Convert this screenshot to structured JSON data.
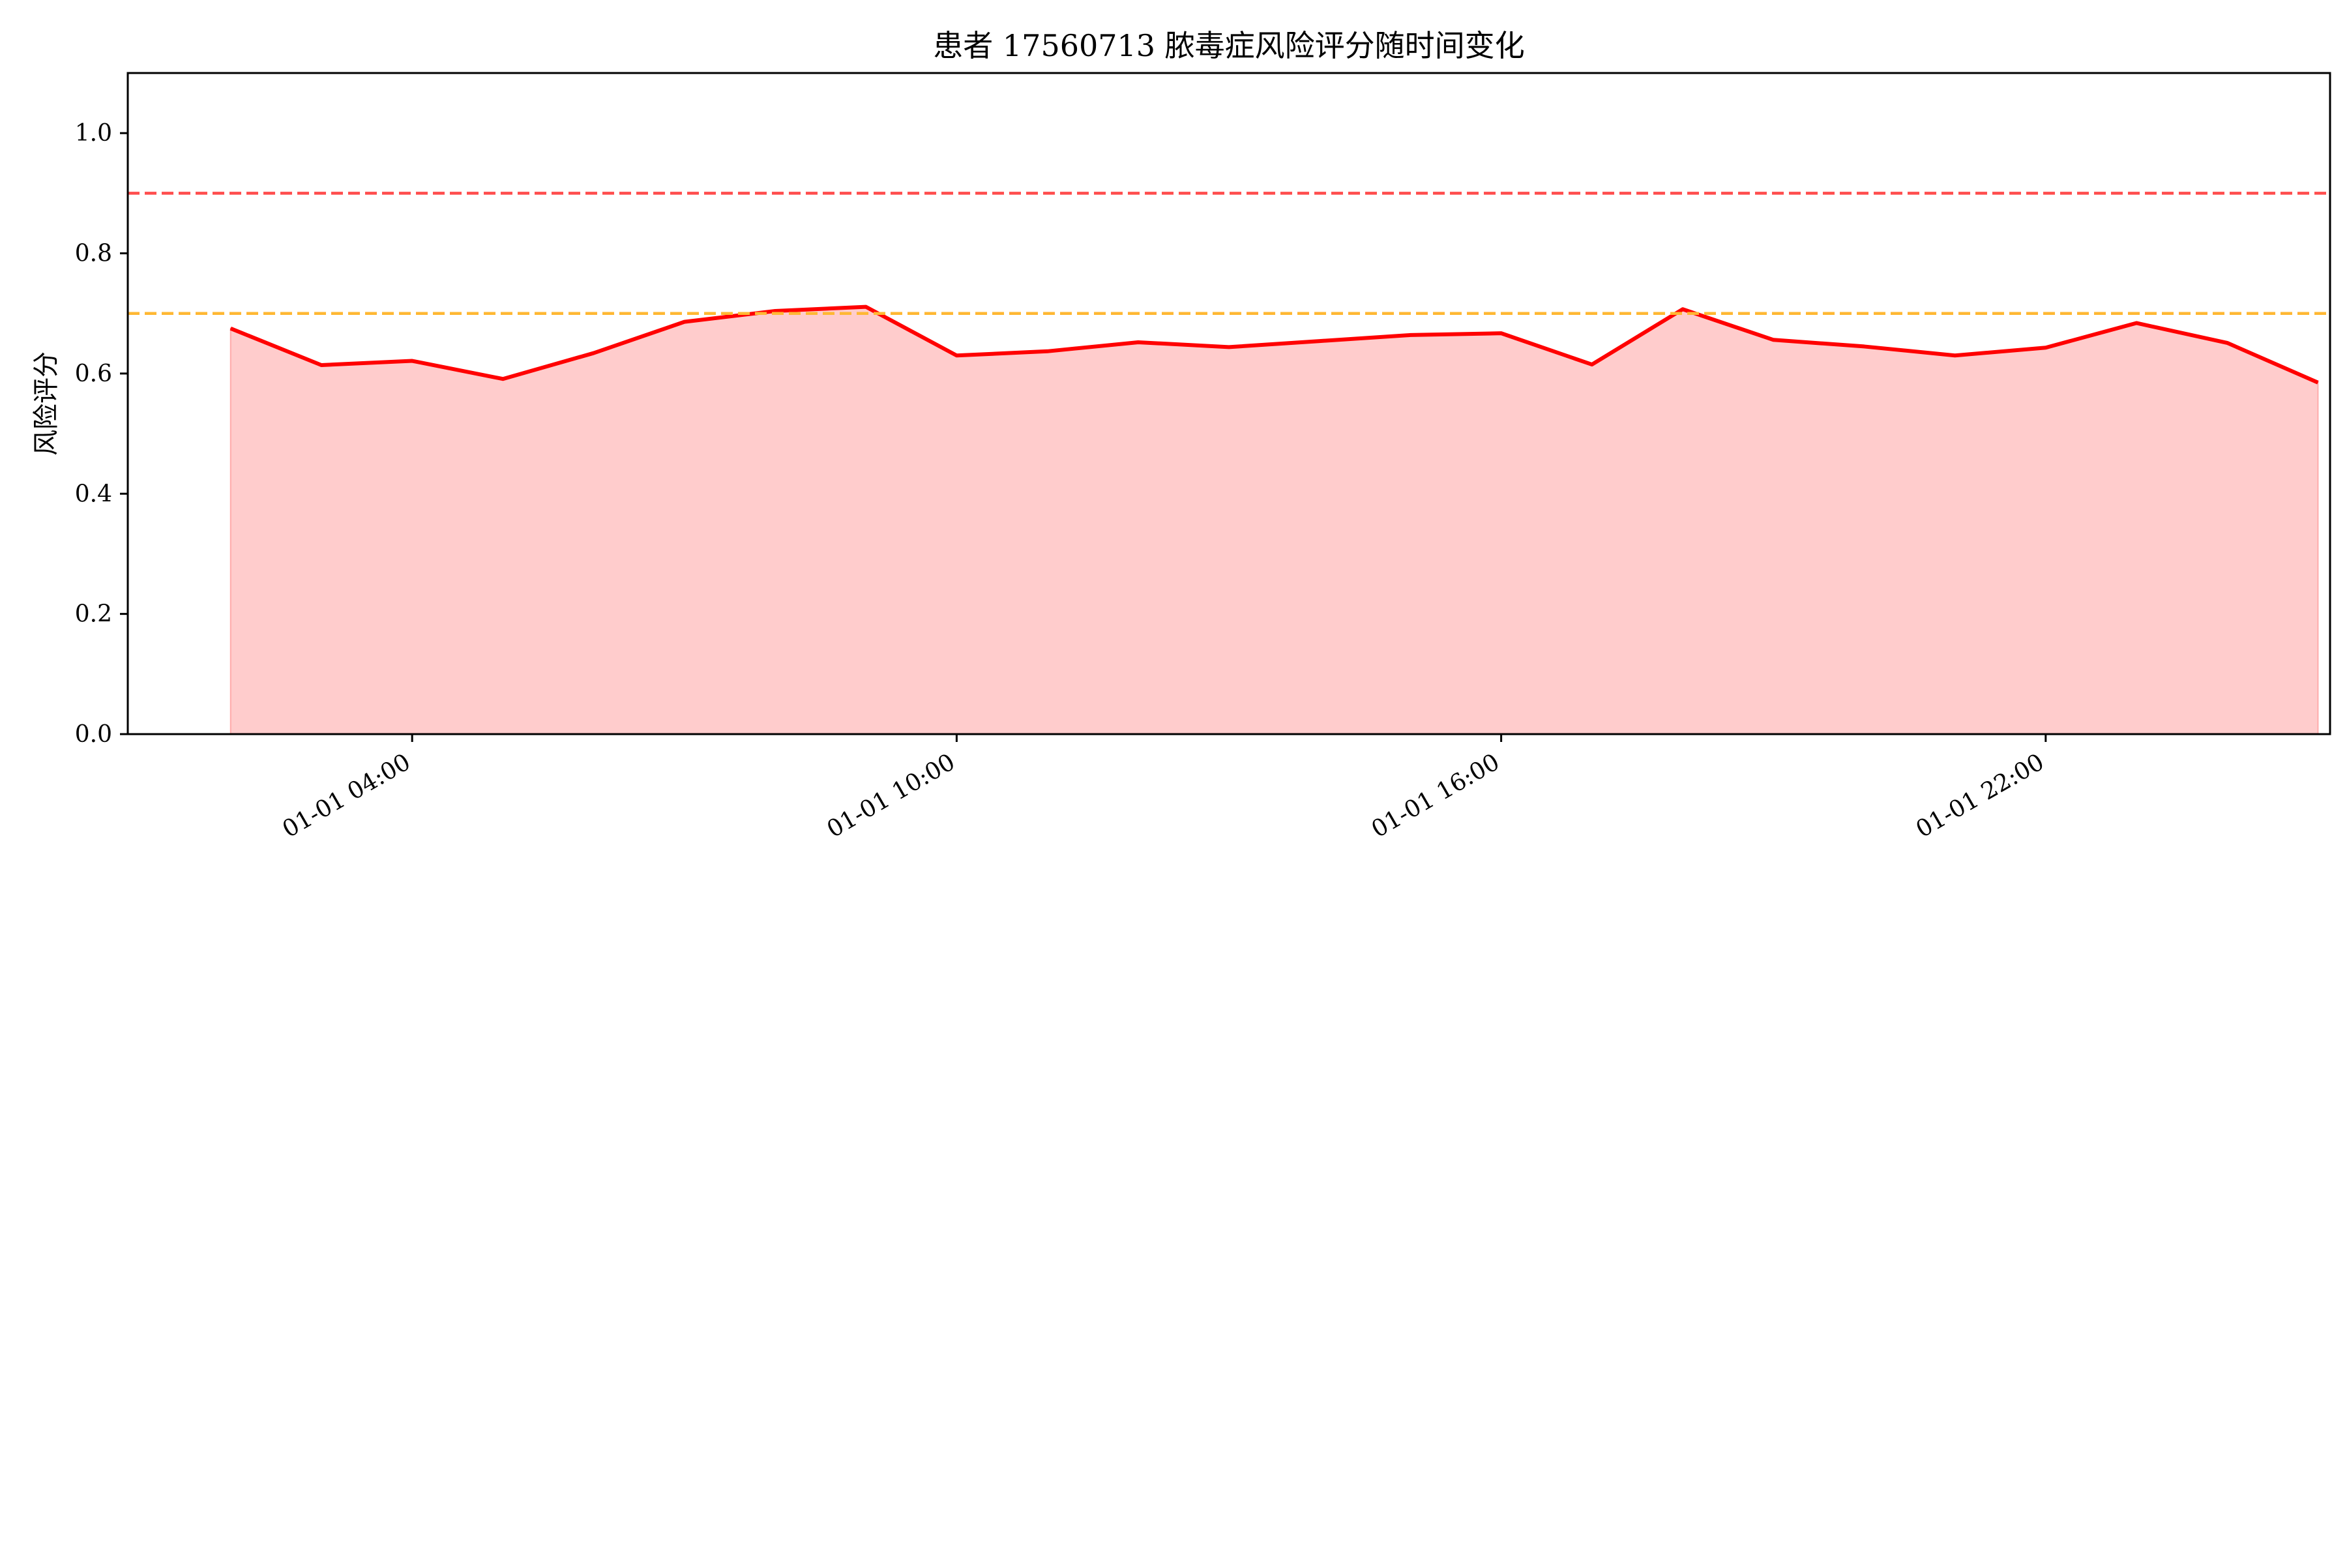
{
  "chart_data": {
    "type": "area",
    "title": "患者 17560713 脓毒症风险评分随时间变化",
    "xlabel": "",
    "ylabel": "风险评分",
    "ylim": [
      0,
      1.1
    ],
    "xlim": [
      "2024-01-01T00:52",
      "2024-01-02T01:08"
    ],
    "yticks": [
      {
        "value": 0.0,
        "label": "0.0"
      },
      {
        "value": 0.2,
        "label": "0.2"
      },
      {
        "value": 0.4,
        "label": "0.4"
      },
      {
        "value": 0.6,
        "label": "0.6"
      },
      {
        "value": 0.8,
        "label": "0.8"
      },
      {
        "value": 1.0,
        "label": "1.0"
      }
    ],
    "xticks": [
      {
        "value": "2024-01-01T04:00",
        "label": "01-01 04:00"
      },
      {
        "value": "2024-01-01T10:00",
        "label": "01-01 10:00"
      },
      {
        "value": "2024-01-01T16:00",
        "label": "01-01 16:00"
      },
      {
        "value": "2024-01-01T22:00",
        "label": "01-01 22:00"
      }
    ],
    "x": [
      "2024-01-01T02:00",
      "2024-01-01T03:00",
      "2024-01-01T04:00",
      "2024-01-01T05:00",
      "2024-01-01T06:00",
      "2024-01-01T07:00",
      "2024-01-01T08:00",
      "2024-01-01T09:00",
      "2024-01-01T10:00",
      "2024-01-01T11:00",
      "2024-01-01T12:00",
      "2024-01-01T13:00",
      "2024-01-01T14:00",
      "2024-01-01T15:00",
      "2024-01-01T16:00",
      "2024-01-01T17:00",
      "2024-01-01T18:00",
      "2024-01-01T19:00",
      "2024-01-01T20:00",
      "2024-01-01T21:00",
      "2024-01-01T22:00",
      "2024-01-01T23:00",
      "2024-01-02T00:00",
      "2024-01-02T01:00"
    ],
    "series": [
      {
        "values": [
          0.675,
          0.614,
          0.621,
          0.591,
          0.634,
          0.686,
          0.704,
          0.711,
          0.63,
          0.637,
          0.652,
          0.644,
          0.654,
          0.664,
          0.667,
          0.615,
          0.707,
          0.656,
          0.645,
          0.63,
          0.643,
          0.684,
          0.651,
          0.585
        ],
        "line_color": "#ff0000",
        "fill_color": "#ffcccc"
      }
    ],
    "reference_lines": [
      {
        "value": 0.9,
        "color": "#ff4d4d",
        "style": "dashed"
      },
      {
        "value": 0.7,
        "color": "#ffb833",
        "style": "dashed"
      }
    ],
    "grid": false,
    "legend": "none"
  }
}
